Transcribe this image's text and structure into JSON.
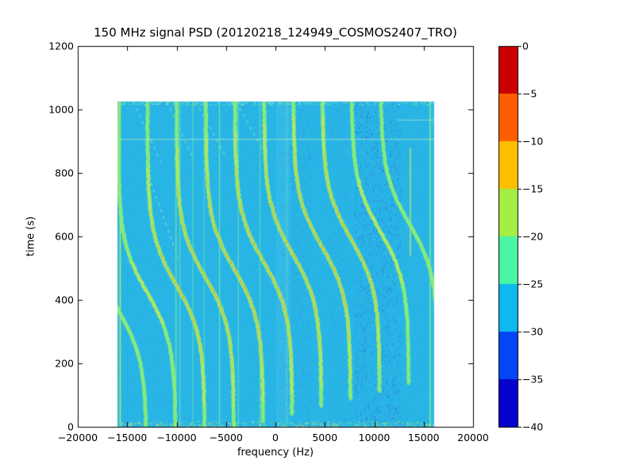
{
  "axes": {
    "title": "150 MHz signal PSD (20120218_124949_COSMOS2407_TRO)",
    "xlabel": "frequency (Hz)",
    "ylabel": "time (s)",
    "xticklabels": [
      "−20000",
      "−15000",
      "−10000",
      "−5000",
      "0",
      "5000",
      "10000",
      "15000",
      "20000"
    ],
    "yticklabels": [
      "0",
      "200",
      "400",
      "600",
      "800",
      "1000",
      "1200"
    ],
    "colorbar_ticklabels": [
      "0",
      "−5",
      "−10",
      "−15",
      "−20",
      "−25",
      "−30",
      "−35",
      "−40"
    ]
  },
  "chart_data": {
    "type": "heatmap",
    "title": "150 MHz signal PSD (20120218_124949_COSMOS2407_TRO)",
    "xlabel": "frequency (Hz)",
    "ylabel": "time (s)",
    "xlim": [
      -20000,
      20000
    ],
    "ylim": [
      0,
      1200
    ],
    "xticks": [
      -20000,
      -15000,
      -10000,
      -5000,
      0,
      5000,
      10000,
      15000,
      20000
    ],
    "yticks": [
      0,
      200,
      400,
      600,
      800,
      1000,
      1200
    ],
    "grid": false,
    "colorbar": {
      "ticks": [
        0,
        -5,
        -10,
        -15,
        -20,
        -25,
        -30,
        -35,
        -40
      ],
      "range_db": [
        -40,
        0
      ],
      "discrete_segments": 8,
      "colors_top_to_bottom": [
        "#cb0000",
        "#ff5e00",
        "#ffbf00",
        "#a4ee45",
        "#49f6a5",
        "#0fb8ef",
        "#0346f6",
        "#0503cd"
      ]
    },
    "data_extent": {
      "freq_hz": [
        -16000,
        16050
      ],
      "time_s": [
        0,
        1025
      ]
    },
    "background_db": -28,
    "background_color": "#28b5e6",
    "track_palette": {
      "faint": "#86ec7d",
      "low": "#ffdf3c",
      "mid": "#ff7a14",
      "peak": "#d81d05"
    },
    "doppler_tracks": [
      {
        "f0": -15950,
        "t0": 370,
        "amp": 2900,
        "tau": 160,
        "strength": 0.5
      },
      {
        "f0": -13000,
        "t0": 424,
        "amp": 2900,
        "tau": 160,
        "strength": 0.55
      },
      {
        "f0": -10050,
        "t0": 448,
        "amp": 2900,
        "tau": 160,
        "strength": 0.9
      },
      {
        "f0": -7100,
        "t0": 472,
        "amp": 2900,
        "tau": 160,
        "strength": 1.0
      },
      {
        "f0": -4150,
        "t0": 496,
        "amp": 2900,
        "tau": 160,
        "strength": 1.0
      },
      {
        "f0": -1200,
        "t0": 520,
        "amp": 2900,
        "tau": 160,
        "strength": 1.0
      },
      {
        "f0": 1750,
        "t0": 544,
        "amp": 2900,
        "tau": 160,
        "strength": 1.0
      },
      {
        "f0": 4700,
        "t0": 568,
        "amp": 2900,
        "tau": 160,
        "strength": 1.0
      },
      {
        "f0": 7650,
        "t0": 592,
        "amp": 2900,
        "tau": 160,
        "strength": 0.95
      },
      {
        "f0": 10600,
        "t0": 616,
        "amp": 2900,
        "tau": 160,
        "strength": 0.6
      },
      {
        "f0": 13550,
        "t0": 640,
        "amp": 2900,
        "tau": 160,
        "strength": 0.5
      }
    ],
    "rfi_lines": [
      {
        "freq": -15750,
        "color": "#b9ee62",
        "w": 1.6,
        "a": 0.95
      },
      {
        "freq": -10100,
        "color": "#7deb8e",
        "w": 1.3,
        "a": 0.85
      },
      {
        "freq": -9700,
        "color": "#8fefa0",
        "w": 1.0,
        "a": 0.7
      },
      {
        "freq": -8400,
        "color": "#6fe8a2",
        "w": 1.0,
        "a": 0.8
      },
      {
        "freq": -7250,
        "color": "#6fe8a2",
        "w": 1.0,
        "a": 0.7
      },
      {
        "freq": -5700,
        "color": "#7deb8e",
        "w": 1.2,
        "a": 0.85
      },
      {
        "freq": -3800,
        "color": "#8fefa0",
        "w": 1.0,
        "a": 0.7
      },
      {
        "freq": -1600,
        "color": "#7deb8e",
        "w": 1.0,
        "a": 0.75
      },
      {
        "freq": 1100,
        "color": "#8fefa0",
        "w": 1.0,
        "a": 0.5
      },
      {
        "freq": 13600,
        "color": "#cdeb6a",
        "w": 1.5,
        "a": 0.85,
        "t1": 540,
        "t2": 880
      },
      {
        "freq": 15600,
        "color": "#7deb8e",
        "w": 1.6,
        "a": 0.95
      }
    ],
    "ghost_tracks": [
      {
        "f1": -14400,
        "t1": 1025,
        "f2": -11400,
        "t2": 820
      },
      {
        "f1": -11000,
        "t1": 1025,
        "f2": -8300,
        "t2": 845
      },
      {
        "f1": -8050,
        "t1": 1025,
        "f2": -5100,
        "t2": 855
      },
      {
        "f1": -4000,
        "t1": 1025,
        "f2": -1050,
        "t2": 860
      },
      {
        "f1": -12600,
        "t1": 770,
        "f2": -9700,
        "t2": 520
      }
    ],
    "horizontal_lines": [
      {
        "time": 907,
        "f1": -16000,
        "f2": 16050,
        "color": "#aee9c4",
        "a": 0.85
      },
      {
        "time": 968,
        "f1": 12200,
        "f2": 16050,
        "color": "#a8e8c0",
        "a": 0.75
      }
    ],
    "light_columns": [
      {
        "f1": 80,
        "f2": 1530,
        "color": "#4fcbf0",
        "a": 0.3
      },
      {
        "f1": 15700,
        "f2": 16050,
        "color": "#4fcbf0",
        "a": 0.3
      }
    ],
    "noise_bands": [
      {
        "f1": -16000,
        "f2": 16050,
        "count": 3000,
        "palette": [
          "#4cc6ee",
          "#1aa6da",
          "#3a9bd0"
        ],
        "a": 0.55
      },
      {
        "f1": -16000,
        "f2": 16050,
        "count": 700,
        "palette": [
          "#69e2a8"
        ],
        "a": 0.4
      },
      {
        "f1": 8000,
        "f2": 12700,
        "count": 2200,
        "palette": [
          "#3a9bd0",
          "#5b5bd8",
          "#2f45cc"
        ],
        "a": 0.65
      },
      {
        "f1": 400,
        "f2": 3600,
        "count": 900,
        "palette": [
          "#3a9bd0",
          "#5b5bd8"
        ],
        "a": 0.55
      },
      {
        "f1": 5400,
        "f2": 7500,
        "count": 400,
        "palette": [
          "#3a9bd0",
          "#5b5bd8"
        ],
        "a": 0.5
      }
    ],
    "bottom_strip": {
      "count": 380,
      "palette": [
        "#7deb8e",
        "#ffe04a",
        "#b9ee62",
        "#4cc6ee"
      ]
    },
    "top_strip": {
      "count": 220,
      "palette": [
        "#7deb8e",
        "#a9eec0"
      ]
    }
  }
}
